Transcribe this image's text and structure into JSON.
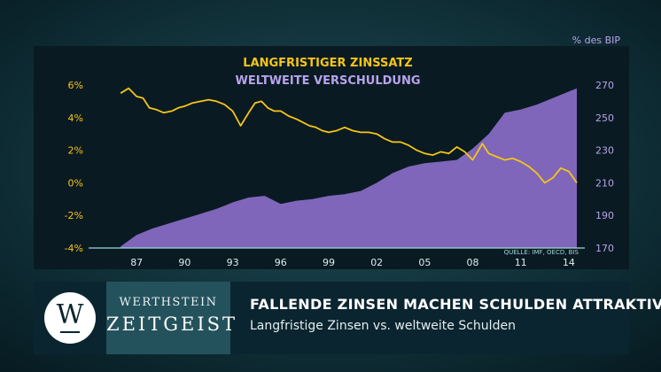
{
  "chart_data": {
    "type": "line",
    "title_line1": "LANGFRISTIGER ZINSSATZ",
    "title_line2": "WELTWEITE VERSCHULDUNG",
    "right_axis_unit": "% des BIP",
    "source": "QUELLE: IMF, OECD, BIS",
    "x_ticks": [
      "87",
      "90",
      "93",
      "96",
      "99",
      "02",
      "05",
      "08",
      "11",
      "14"
    ],
    "x_range": [
      1984,
      2015
    ],
    "left_axis": {
      "ticks": [
        "6%",
        "4%",
        "2%",
        "0%",
        "-2%",
        "-4%"
      ],
      "ylim": [
        -4,
        6
      ]
    },
    "right_axis": {
      "ticks": [
        "270",
        "250",
        "230",
        "210",
        "190",
        "170"
      ],
      "ylim": [
        170,
        270
      ]
    },
    "colors": {
      "rate": "#f5c518",
      "debt": "#8a6dc8",
      "right_axis_text": "#b7a4ec",
      "panel": "#0a1a22"
    },
    "series": [
      {
        "name": "LANGFRISTIGER ZINSSATZ",
        "axis": "left",
        "x": [
          1986.0,
          1986.5,
          1987.0,
          1987.4,
          1987.8,
          1988.2,
          1988.7,
          1989.2,
          1989.6,
          1990.0,
          1990.5,
          1991.0,
          1991.5,
          1992.0,
          1992.5,
          1993.0,
          1993.5,
          1994.0,
          1994.4,
          1994.8,
          1995.2,
          1995.6,
          1996.0,
          1996.5,
          1997.0,
          1997.4,
          1997.8,
          1998.2,
          1998.6,
          1999.0,
          1999.5,
          2000.0,
          2000.5,
          2001.0,
          2001.5,
          2002.0,
          2002.5,
          2003.0,
          2003.5,
          2004.0,
          2004.5,
          2005.0,
          2005.5,
          2006.0,
          2006.5,
          2007.0,
          2007.5,
          2008.0,
          2008.3,
          2008.6,
          2009.0,
          2009.5,
          2010.0,
          2010.5,
          2011.0,
          2011.5,
          2012.0,
          2012.5,
          2013.0,
          2013.5,
          2014.0,
          2014.5
        ],
        "values": [
          5.5,
          5.8,
          5.3,
          5.2,
          4.6,
          4.5,
          4.3,
          4.4,
          4.6,
          4.7,
          4.9,
          5.0,
          5.1,
          5.0,
          4.8,
          4.4,
          3.5,
          4.3,
          4.9,
          5.0,
          4.6,
          4.4,
          4.4,
          4.1,
          3.9,
          3.7,
          3.5,
          3.4,
          3.2,
          3.1,
          3.2,
          3.4,
          3.2,
          3.1,
          3.1,
          3.0,
          2.7,
          2.5,
          2.5,
          2.3,
          2.0,
          1.8,
          1.7,
          1.9,
          1.8,
          2.2,
          1.9,
          1.4,
          1.9,
          2.4,
          1.8,
          1.6,
          1.4,
          1.5,
          1.3,
          1.0,
          0.6,
          0.0,
          0.3,
          0.9,
          0.7,
          0.0
        ]
      },
      {
        "name": "WELTWEITE VERSCHULDUNG",
        "axis": "right",
        "x": [
          1986.0,
          1987.0,
          1988.0,
          1989.0,
          1990.0,
          1991.0,
          1992.0,
          1993.0,
          1994.0,
          1995.0,
          1996.0,
          1997.0,
          1998.0,
          1999.0,
          2000.0,
          2001.0,
          2002.0,
          2003.0,
          2004.0,
          2005.0,
          2006.0,
          2007.0,
          2008.0,
          2009.0,
          2010.0,
          2011.0,
          2012.0,
          2013.0,
          2014.0,
          2014.5
        ],
        "values": [
          171,
          178,
          182,
          185,
          188,
          191,
          194,
          198,
          201,
          202,
          197,
          199,
          200,
          202,
          203,
          205,
          210,
          216,
          220,
          222,
          223,
          224,
          231,
          240,
          253,
          255,
          258,
          262,
          266,
          268
        ]
      }
    ]
  },
  "banner": {
    "logo_letter": "W",
    "brand_top": "WERTHSTEIN",
    "brand_bottom": "ZEITGEIST",
    "headline": "FALLENDE ZINSEN MACHEN SCHULDEN ATTRAKTIV",
    "subline": "Langfristige Zinsen vs. weltweite Schulden"
  }
}
